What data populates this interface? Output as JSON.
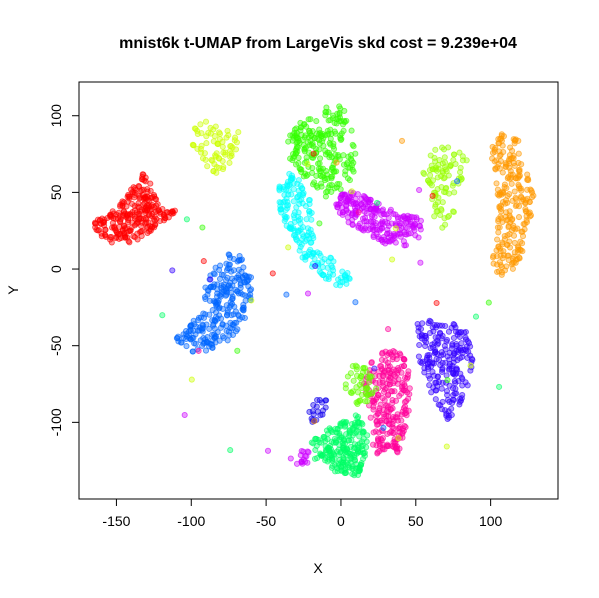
{
  "chart_data": {
    "type": "scatter",
    "title": "mnist6k t-UMAP from LargeVis skd cost = 9.239e+04",
    "xlabel": "X",
    "ylabel": "Y",
    "xlim": [
      -175,
      145
    ],
    "ylim": [
      -150,
      122
    ],
    "xticks": [
      -150,
      -100,
      -50,
      0,
      50,
      100
    ],
    "yticks": [
      -100,
      -50,
      0,
      50,
      100
    ],
    "xtick_labels": [
      "-150",
      "-100",
      "-50",
      "0",
      "50",
      "100"
    ],
    "ytick_labels": [
      "-100",
      "-50",
      "0",
      "50",
      "100"
    ],
    "grid": false,
    "legend": "none",
    "point_alpha": 0.4,
    "clusters": [
      {
        "color": "#FF0000",
        "count": 260,
        "polygon": [
          [
            -165,
            30
          ],
          [
            -160,
            37
          ],
          [
            -150,
            40
          ],
          [
            -140,
            53
          ],
          [
            -133,
            63
          ],
          [
            -128,
            60
          ],
          [
            -125,
            50
          ],
          [
            -120,
            40
          ],
          [
            -110,
            42
          ],
          [
            -105,
            45
          ],
          [
            -108,
            38
          ],
          [
            -120,
            30
          ],
          [
            -130,
            22
          ],
          [
            -140,
            17
          ],
          [
            -150,
            16
          ],
          [
            -160,
            20
          ],
          [
            -165,
            26
          ]
        ]
      },
      {
        "color": "#CCFF00",
        "count": 70,
        "polygon": [
          [
            -100,
            92
          ],
          [
            -92,
            97
          ],
          [
            -82,
            94
          ],
          [
            -68,
            90
          ],
          [
            -70,
            78
          ],
          [
            -75,
            68
          ],
          [
            -80,
            62
          ],
          [
            -88,
            63
          ],
          [
            -92,
            72
          ],
          [
            -99,
            80
          ]
        ]
      },
      {
        "color": "#0066FF",
        "count": 260,
        "polygon": [
          [
            -110,
            -45
          ],
          [
            -105,
            -40
          ],
          [
            -95,
            -30
          ],
          [
            -92,
            -10
          ],
          [
            -85,
            0
          ],
          [
            -75,
            10
          ],
          [
            -65,
            8
          ],
          [
            -60,
            -5
          ],
          [
            -60,
            -20
          ],
          [
            -65,
            -35
          ],
          [
            -72,
            -45
          ],
          [
            -80,
            -50
          ],
          [
            -95,
            -55
          ],
          [
            -108,
            -52
          ]
        ]
      },
      {
        "color": "#33FF00",
        "count": 230,
        "polygon": [
          [
            -38,
            80
          ],
          [
            -30,
            95
          ],
          [
            -15,
            100
          ],
          [
            -10,
            107
          ],
          [
            -5,
            108
          ],
          [
            5,
            105
          ],
          [
            10,
            90
          ],
          [
            10,
            72
          ],
          [
            8,
            60
          ],
          [
            0,
            52
          ],
          [
            -10,
            47
          ],
          [
            -20,
            55
          ],
          [
            -30,
            65
          ],
          [
            -36,
            72
          ]
        ]
      },
      {
        "color": "#00FFFF",
        "count": 180,
        "polygon": [
          [
            -40,
            60
          ],
          [
            -30,
            65
          ],
          [
            -22,
            55
          ],
          [
            -18,
            40
          ],
          [
            -20,
            25
          ],
          [
            -15,
            15
          ],
          [
            -8,
            10
          ],
          [
            0,
            2
          ],
          [
            8,
            -5
          ],
          [
            5,
            -12
          ],
          [
            -5,
            -10
          ],
          [
            -15,
            -5
          ],
          [
            -22,
            0
          ],
          [
            -30,
            15
          ],
          [
            -40,
            35
          ],
          [
            -42,
            50
          ]
        ]
      },
      {
        "color": "#CC00FF",
        "count": 230,
        "polygon": [
          [
            -5,
            40
          ],
          [
            0,
            50
          ],
          [
            10,
            50
          ],
          [
            20,
            48
          ],
          [
            30,
            40
          ],
          [
            40,
            37
          ],
          [
            50,
            35
          ],
          [
            55,
            30
          ],
          [
            52,
            20
          ],
          [
            45,
            15
          ],
          [
            35,
            15
          ],
          [
            25,
            18
          ],
          [
            15,
            25
          ],
          [
            5,
            30
          ]
        ]
      },
      {
        "color": "#99FF00",
        "count": 90,
        "polygon": [
          [
            52,
            70
          ],
          [
            60,
            78
          ],
          [
            70,
            80
          ],
          [
            80,
            78
          ],
          [
            85,
            70
          ],
          [
            82,
            60
          ],
          [
            78,
            50
          ],
          [
            76,
            35
          ],
          [
            70,
            25
          ],
          [
            62,
            30
          ],
          [
            62,
            40
          ],
          [
            58,
            55
          ]
        ]
      },
      {
        "color": "#FF9900",
        "count": 230,
        "polygon": [
          [
            100,
            80
          ],
          [
            108,
            90
          ],
          [
            118,
            88
          ],
          [
            120,
            70
          ],
          [
            128,
            60
          ],
          [
            130,
            45
          ],
          [
            126,
            30
          ],
          [
            122,
            15
          ],
          [
            120,
            5
          ],
          [
            112,
            -5
          ],
          [
            105,
            -5
          ],
          [
            100,
            5
          ],
          [
            104,
            15
          ],
          [
            103,
            30
          ],
          [
            105,
            45
          ],
          [
            102,
            60
          ]
        ]
      },
      {
        "color": "#3300FF",
        "count": 210,
        "polygon": [
          [
            50,
            -35
          ],
          [
            60,
            -32
          ],
          [
            75,
            -35
          ],
          [
            85,
            -42
          ],
          [
            88,
            -60
          ],
          [
            85,
            -75
          ],
          [
            80,
            -90
          ],
          [
            75,
            -100
          ],
          [
            65,
            -95
          ],
          [
            62,
            -85
          ],
          [
            58,
            -75
          ],
          [
            52,
            -60
          ]
        ]
      },
      {
        "color": "#FF0099",
        "count": 240,
        "polygon": [
          [
            20,
            -60
          ],
          [
            30,
            -52
          ],
          [
            40,
            -55
          ],
          [
            45,
            -62
          ],
          [
            48,
            -75
          ],
          [
            45,
            -95
          ],
          [
            42,
            -110
          ],
          [
            38,
            -122
          ],
          [
            28,
            -123
          ],
          [
            20,
            -118
          ],
          [
            22,
            -105
          ],
          [
            18,
            -90
          ],
          [
            15,
            -75
          ]
        ]
      },
      {
        "color": "#00FF66",
        "count": 230,
        "polygon": [
          [
            -20,
            -110
          ],
          [
            -10,
            -105
          ],
          [
            0,
            -100
          ],
          [
            10,
            -95
          ],
          [
            15,
            -100
          ],
          [
            20,
            -115
          ],
          [
            15,
            -125
          ],
          [
            12,
            -135
          ],
          [
            0,
            -135
          ],
          [
            -10,
            -128
          ],
          [
            -18,
            -125
          ],
          [
            -22,
            -118
          ]
        ]
      },
      {
        "color": "#66FF00",
        "count": 50,
        "polygon": [
          [
            0,
            -75
          ],
          [
            10,
            -60
          ],
          [
            15,
            -60
          ],
          [
            20,
            -65
          ],
          [
            25,
            -75
          ],
          [
            20,
            -85
          ],
          [
            12,
            -90
          ],
          [
            5,
            -82
          ]
        ]
      },
      {
        "color": "#1100EE",
        "count": 20,
        "polygon": [
          [
            -25,
            -95
          ],
          [
            -20,
            -85
          ],
          [
            -12,
            -82
          ],
          [
            -8,
            -88
          ],
          [
            -12,
            -98
          ],
          [
            -20,
            -100
          ]
        ]
      },
      {
        "color": "#CC00FF",
        "count": 16,
        "polygon": [
          [
            -35,
            -122
          ],
          [
            -25,
            -115
          ],
          [
            -18,
            -118
          ],
          [
            -20,
            -126
          ],
          [
            -30,
            -128
          ]
        ]
      }
    ],
    "scatter_colors": [
      "#FF0000",
      "#33FF00",
      "#00FFFF",
      "#CC00FF",
      "#FF9900",
      "#0066FF",
      "#FF0099",
      "#00FF66",
      "#CCFF00",
      "#3300FF"
    ]
  }
}
